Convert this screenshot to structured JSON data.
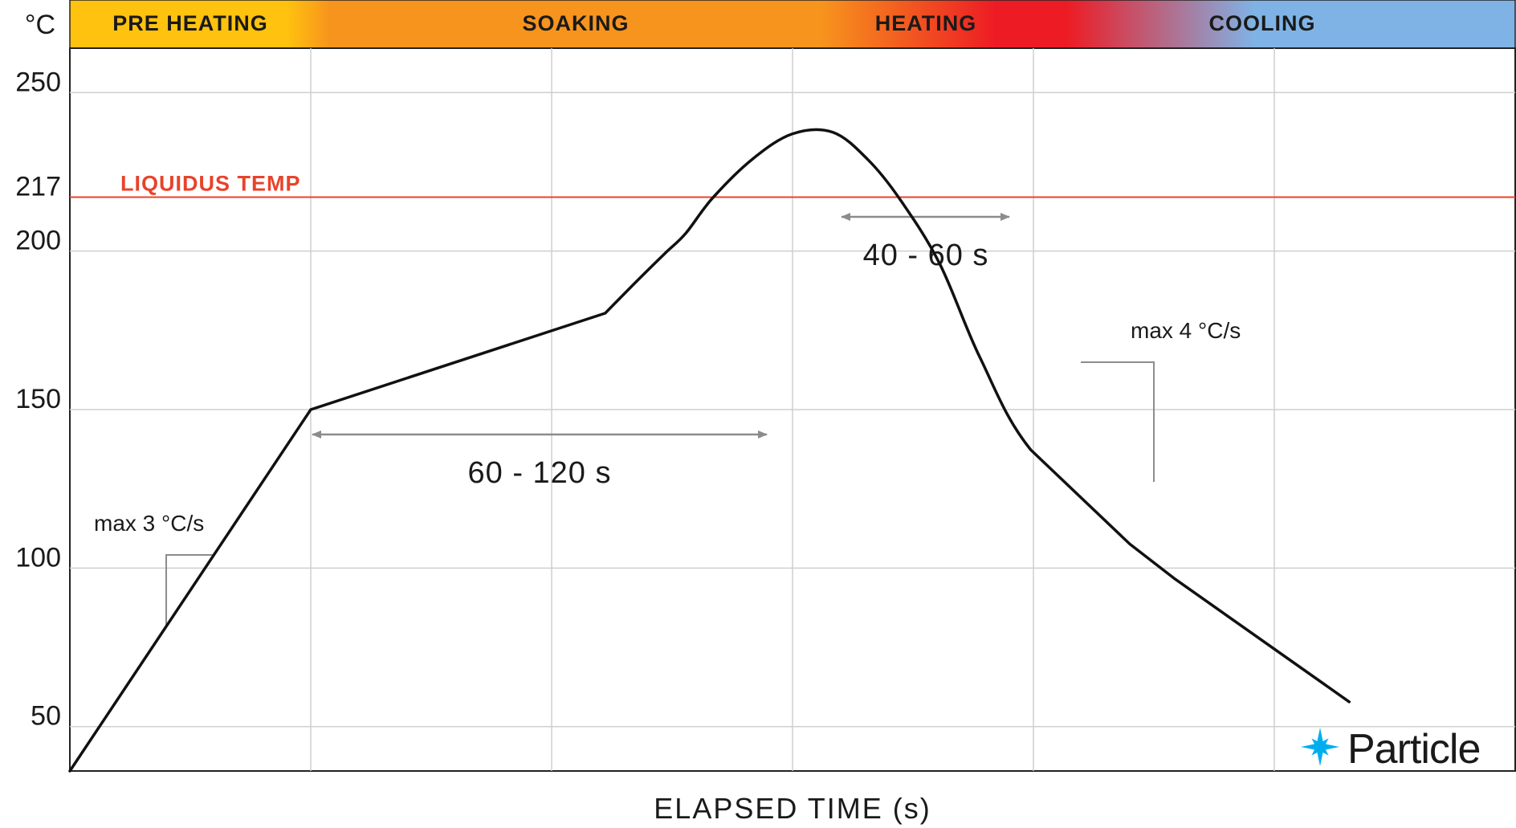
{
  "chart_data": {
    "type": "line",
    "unit_label": "°C",
    "xlabel": "ELAPSED TIME (s)",
    "ylabel": "",
    "y_ticks": [
      50,
      100,
      150,
      200,
      217,
      250
    ],
    "ylim": [
      36,
      264
    ],
    "grid": true,
    "phases": [
      {
        "label": "PRE HEATING"
      },
      {
        "label": "SOAKING"
      },
      {
        "label": "HEATING"
      },
      {
        "label": "COOLING"
      }
    ],
    "phase_colors": [
      "#FFC20E",
      "#F7941D",
      "#ED1C24",
      "#7FB3E6"
    ],
    "reference_line": {
      "label": "LIQUIDUS TEMP",
      "value": 217,
      "color": "#E8432B"
    },
    "series": [
      {
        "x": [
          0,
          9,
          20,
          21,
          22.2,
          23,
          24,
          25.5,
          27,
          28.5,
          29.8,
          31,
          32.5,
          34,
          35.9,
          39.6,
          41.3,
          47.8
        ],
        "y": [
          36,
          150,
          180.4,
          189,
          199,
          205.5,
          216.6,
          229,
          237,
          237.5,
          229,
          216.5,
          196,
          166.5,
          137.3,
          107.6,
          96.5,
          57.8
        ]
      }
    ],
    "annotations": {
      "soak_duration": "60 - 120 s",
      "reflow_duration": "40 - 60 s",
      "ramp_up": "max 3 °C/s",
      "ramp_down": "max 4 °C/s"
    }
  },
  "brand": {
    "name": "Particle",
    "color": "#00AEEF"
  }
}
